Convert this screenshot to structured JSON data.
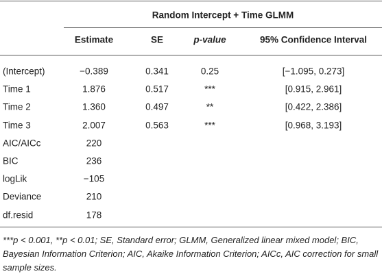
{
  "table": {
    "title": "Random Intercept + Time GLMM",
    "headers": [
      "Estimate",
      "SE",
      "p-value",
      "95% Confidence Interval"
    ],
    "rows": [
      [
        "(Intercept)",
        "−0.389",
        "0.341",
        "0.25",
        "[−1.095, 0.273]"
      ],
      [
        "Time 1",
        "1.876",
        "0.517",
        "***",
        "[0.915, 2.961]"
      ],
      [
        "Time 2",
        "1.360",
        "0.497",
        "**",
        "[0.422, 2.386]"
      ],
      [
        "Time 3",
        "2.007",
        "0.563",
        "***",
        "[0.968, 3.193]"
      ],
      [
        "AIC/AICc",
        "220"
      ],
      [
        "BIC",
        "236"
      ],
      [
        "logLik",
        "−105"
      ],
      [
        "Deviance",
        "210"
      ],
      [
        "df.resid",
        "178"
      ]
    ],
    "footnote": "***p < 0.001, **p < 0.01; SE, Standard error; GLMM, Generalized linear mixed model; BIC, Bayesian Information Criterion; AIC, Akaike Information Criterion; AICc, AIC correction for small sample sizes."
  }
}
